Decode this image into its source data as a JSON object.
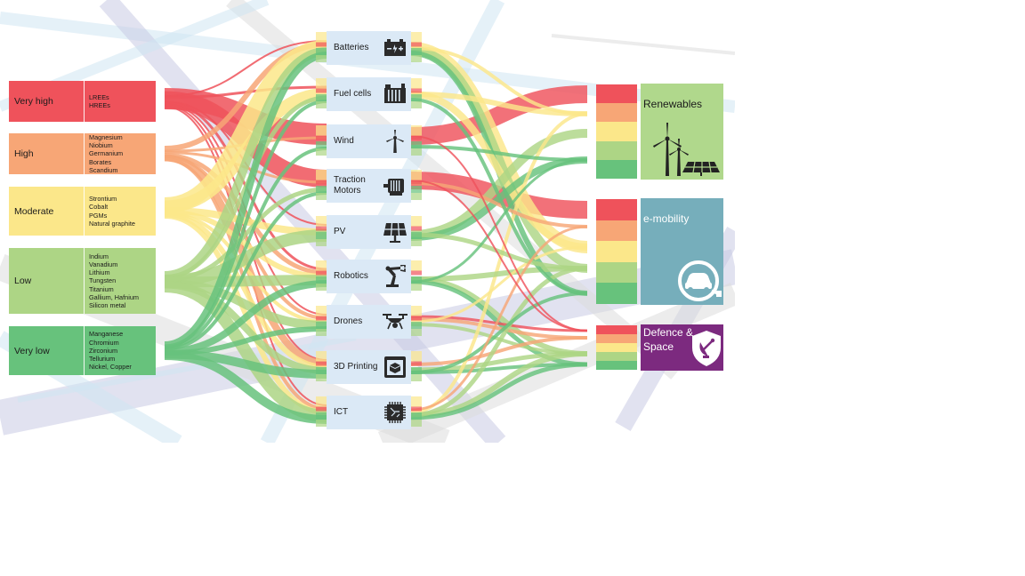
{
  "risk_levels": [
    {
      "level": "Very high",
      "materials": [
        "LREEs",
        "HREEs"
      ],
      "color": "#ef525b"
    },
    {
      "level": "High",
      "materials": [
        "Magnesium",
        "Niobium",
        "Germanium",
        "Borates",
        "Scandium"
      ],
      "color": "#f7a676"
    },
    {
      "level": "Moderate",
      "materials": [
        "Strontium",
        "Cobalt",
        "PGMs",
        "Natural graphite"
      ],
      "color": "#fbe78a"
    },
    {
      "level": "Low",
      "materials": [
        "Indium",
        "Vanadium",
        "Lithium",
        "Tungsten",
        "Titanium",
        "Gallium, Hafnium",
        "Silicon metal"
      ],
      "color": "#add585"
    },
    {
      "level": "Very low",
      "materials": [
        "Manganese",
        "Chromium",
        "Zirconium",
        "Tellurium",
        "Nickel, Copper"
      ],
      "color": "#67c27c"
    }
  ],
  "technologies": [
    {
      "label": "Batteries",
      "icon": "battery-icon"
    },
    {
      "label": "Fuel cells",
      "icon": "fuel-cell-icon"
    },
    {
      "label": "Wind",
      "icon": "wind-turbine-icon"
    },
    {
      "label": "Traction Motors",
      "icon": "traction-motor-icon"
    },
    {
      "label": "PV",
      "icon": "solar-panel-icon"
    },
    {
      "label": "Robotics",
      "icon": "robot-arm-icon"
    },
    {
      "label": "Drones",
      "icon": "drone-icon"
    },
    {
      "label": "3D Printing",
      "icon": "3d-printer-icon"
    },
    {
      "label": "ICT",
      "icon": "microchip-icon"
    }
  ],
  "sectors": [
    {
      "label": "Renewables",
      "color": "#b0d88c",
      "text_color": "#1b1b1b",
      "icon": "wind-solar-icon"
    },
    {
      "label": "e-mobility",
      "color": "#76aebb",
      "text_color": "#ffffff",
      "icon": "electric-car-icon"
    },
    {
      "label": "Defence & Space",
      "color": "#7c2a7f",
      "text_color": "#ffffff",
      "icon": "satellite-shield-icon"
    }
  ],
  "colors": {
    "background_lines": [
      "#c9cbe3",
      "#d0e6f3",
      "#dcdcdc"
    ],
    "tech_box": "#dbe9f6"
  }
}
